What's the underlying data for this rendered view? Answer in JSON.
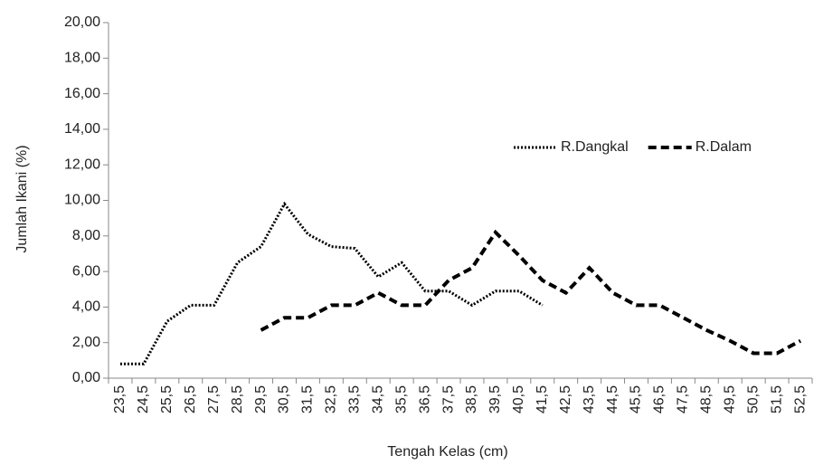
{
  "chart_data": {
    "type": "line",
    "y_label": "Jumlah Ikani (%)",
    "x_label": "Tengah Kelas (cm)",
    "categories": [
      "23,5",
      "24,5",
      "25,5",
      "26,5",
      "27,5",
      "28,5",
      "29,5",
      "30,5",
      "31,5",
      "32,5",
      "33,5",
      "34,5",
      "35,5",
      "36,5",
      "37,5",
      "38,5",
      "39,5",
      "40,5",
      "41,5",
      "42,5",
      "43,5",
      "44,5",
      "45,5",
      "46,5",
      "47,5",
      "48,5",
      "49,5",
      "50,5",
      "51,5",
      "52,5"
    ],
    "series": [
      {
        "name": "R.Dangkal",
        "color": "#000000",
        "style": "dotted",
        "values": [
          0.8,
          0.8,
          3.2,
          4.1,
          4.1,
          6.5,
          7.4,
          9.8,
          8.1,
          7.4,
          7.3,
          5.7,
          6.5,
          4.9,
          4.9,
          4.1,
          4.9,
          4.9,
          4.1,
          null,
          null,
          null,
          null,
          null,
          null,
          null,
          null,
          null,
          null,
          null
        ]
      },
      {
        "name": "R.Dalam",
        "color": "#000000",
        "style": "dashed",
        "values": [
          null,
          null,
          null,
          null,
          null,
          null,
          2.7,
          3.4,
          3.4,
          4.1,
          4.1,
          4.8,
          4.1,
          4.1,
          5.5,
          6.2,
          8.2,
          6.9,
          5.5,
          4.8,
          6.2,
          4.8,
          4.1,
          4.1,
          3.4,
          2.7,
          2.1,
          1.4,
          1.4,
          2.1
        ]
      }
    ],
    "ylim": [
      0,
      20
    ],
    "yticks": [
      {
        "value": 0,
        "label": "0,00"
      },
      {
        "value": 2,
        "label": "2,00"
      },
      {
        "value": 4,
        "label": "4,00"
      },
      {
        "value": 6,
        "label": "6,00"
      },
      {
        "value": 8,
        "label": "8,00"
      },
      {
        "value": 10,
        "label": "10,00"
      },
      {
        "value": 12,
        "label": "12,00"
      },
      {
        "value": 14,
        "label": "14,00"
      },
      {
        "value": 16,
        "label": "16,00"
      },
      {
        "value": 18,
        "label": "18,00"
      },
      {
        "value": 20,
        "label": "20,00"
      }
    ],
    "grid": false,
    "legend": "upper right"
  }
}
